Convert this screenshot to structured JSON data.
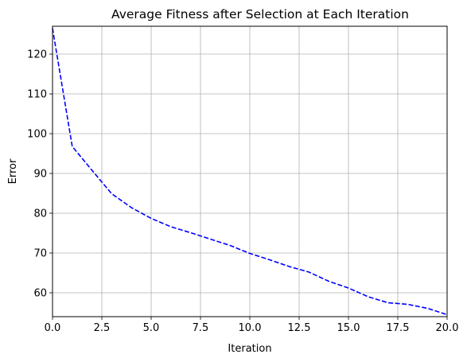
{
  "chart_data": {
    "type": "line",
    "title": "Average Fitness after Selection at Each Iteration",
    "xlabel": "Iteration",
    "ylabel": "Error",
    "xlim": [
      0,
      20
    ],
    "ylim": [
      54,
      127
    ],
    "xticks": [
      0,
      2.5,
      5,
      7.5,
      10,
      12.5,
      15,
      17.5,
      20
    ],
    "xtick_labels": [
      "0.0",
      "2.5",
      "5.0",
      "7.5",
      "10.0",
      "12.5",
      "15.0",
      "17.5",
      "20.0"
    ],
    "yticks": [
      60,
      70,
      80,
      90,
      100,
      110,
      120
    ],
    "ytick_labels": [
      "60",
      "70",
      "80",
      "90",
      "100",
      "110",
      "120"
    ],
    "grid": true,
    "series": [
      {
        "color": "#0000ff",
        "linestyle": "dashed",
        "x": [
          0,
          1,
          2,
          3,
          4,
          5,
          6,
          7,
          8,
          9,
          10,
          11,
          12,
          13,
          14,
          15,
          16,
          17,
          18,
          19,
          20
        ],
        "y": [
          126.5,
          96.8,
          90.8,
          84.9,
          81.4,
          78.7,
          76.6,
          75.1,
          73.5,
          71.9,
          69.9,
          68.3,
          66.6,
          65.2,
          62.9,
          61.2,
          59.0,
          57.5,
          57.1,
          56.1,
          54.5
        ]
      }
    ]
  }
}
